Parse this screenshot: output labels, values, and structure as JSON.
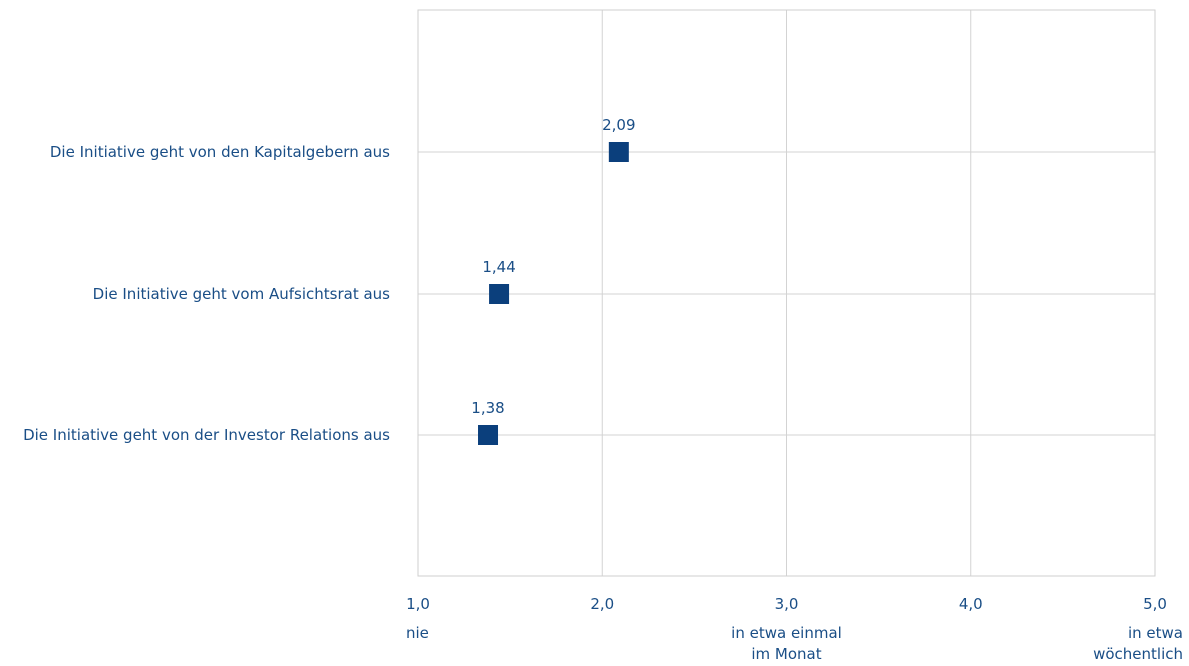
{
  "chart_data": {
    "type": "scatter",
    "orientation": "horizontal",
    "title": "",
    "xlabel": "",
    "ylabel": "",
    "xlim": [
      1.0,
      5.0
    ],
    "grid": true,
    "legend": "none",
    "x_ticks": [
      {
        "value": 1.0,
        "label": "1,0",
        "sublabel": [
          "nie"
        ]
      },
      {
        "value": 2.0,
        "label": "2,0",
        "sublabel": []
      },
      {
        "value": 3.0,
        "label": "3,0",
        "sublabel": [
          "in etwa einmal",
          "im Monat"
        ]
      },
      {
        "value": 4.0,
        "label": "4,0",
        "sublabel": []
      },
      {
        "value": 5.0,
        "label": "5,0",
        "sublabel": [
          "in etwa",
          "wöchentlich"
        ]
      }
    ],
    "categories": [
      "Die Initiative geht von den Kapitalgebern aus",
      "Die Initiative geht vom Aufsichtsrat aus",
      "Die Initiative geht von der Investor Relations aus"
    ],
    "values": [
      2.09,
      1.44,
      1.38
    ],
    "data_labels": [
      "2,09",
      "1,44",
      "1,38"
    ],
    "colors": {
      "marker": "#0b3f7c",
      "text": "#1a4e86",
      "grid": "#d3d3d3",
      "frame": "#cfcfcf"
    }
  }
}
